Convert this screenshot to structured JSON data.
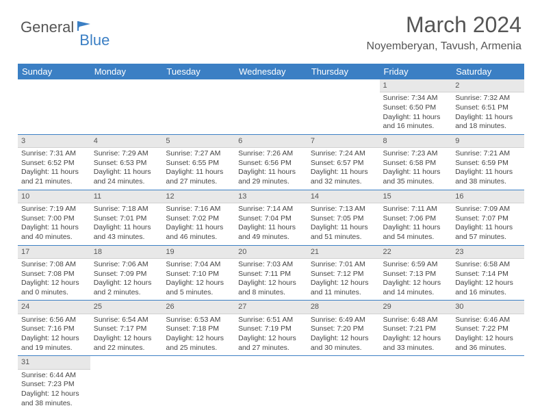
{
  "logo": {
    "text1": "General",
    "text2": "Blue"
  },
  "title": "March 2024",
  "location": "Noyemberyan, Tavush, Armenia",
  "colors": {
    "header_bg": "#3b7fc4",
    "header_text": "#ffffff",
    "daynum_bg": "#e8e8e8",
    "border": "#3b7fc4",
    "text": "#444444",
    "logo_gray": "#555555",
    "logo_blue": "#3b7fc4"
  },
  "columns": [
    "Sunday",
    "Monday",
    "Tuesday",
    "Wednesday",
    "Thursday",
    "Friday",
    "Saturday"
  ],
  "weeks": [
    [
      null,
      null,
      null,
      null,
      null,
      {
        "n": "1",
        "sr": "Sunrise: 7:34 AM",
        "ss": "Sunset: 6:50 PM",
        "d1": "Daylight: 11 hours",
        "d2": "and 16 minutes."
      },
      {
        "n": "2",
        "sr": "Sunrise: 7:32 AM",
        "ss": "Sunset: 6:51 PM",
        "d1": "Daylight: 11 hours",
        "d2": "and 18 minutes."
      }
    ],
    [
      {
        "n": "3",
        "sr": "Sunrise: 7:31 AM",
        "ss": "Sunset: 6:52 PM",
        "d1": "Daylight: 11 hours",
        "d2": "and 21 minutes."
      },
      {
        "n": "4",
        "sr": "Sunrise: 7:29 AM",
        "ss": "Sunset: 6:53 PM",
        "d1": "Daylight: 11 hours",
        "d2": "and 24 minutes."
      },
      {
        "n": "5",
        "sr": "Sunrise: 7:27 AM",
        "ss": "Sunset: 6:55 PM",
        "d1": "Daylight: 11 hours",
        "d2": "and 27 minutes."
      },
      {
        "n": "6",
        "sr": "Sunrise: 7:26 AM",
        "ss": "Sunset: 6:56 PM",
        "d1": "Daylight: 11 hours",
        "d2": "and 29 minutes."
      },
      {
        "n": "7",
        "sr": "Sunrise: 7:24 AM",
        "ss": "Sunset: 6:57 PM",
        "d1": "Daylight: 11 hours",
        "d2": "and 32 minutes."
      },
      {
        "n": "8",
        "sr": "Sunrise: 7:23 AM",
        "ss": "Sunset: 6:58 PM",
        "d1": "Daylight: 11 hours",
        "d2": "and 35 minutes."
      },
      {
        "n": "9",
        "sr": "Sunrise: 7:21 AM",
        "ss": "Sunset: 6:59 PM",
        "d1": "Daylight: 11 hours",
        "d2": "and 38 minutes."
      }
    ],
    [
      {
        "n": "10",
        "sr": "Sunrise: 7:19 AM",
        "ss": "Sunset: 7:00 PM",
        "d1": "Daylight: 11 hours",
        "d2": "and 40 minutes."
      },
      {
        "n": "11",
        "sr": "Sunrise: 7:18 AM",
        "ss": "Sunset: 7:01 PM",
        "d1": "Daylight: 11 hours",
        "d2": "and 43 minutes."
      },
      {
        "n": "12",
        "sr": "Sunrise: 7:16 AM",
        "ss": "Sunset: 7:02 PM",
        "d1": "Daylight: 11 hours",
        "d2": "and 46 minutes."
      },
      {
        "n": "13",
        "sr": "Sunrise: 7:14 AM",
        "ss": "Sunset: 7:04 PM",
        "d1": "Daylight: 11 hours",
        "d2": "and 49 minutes."
      },
      {
        "n": "14",
        "sr": "Sunrise: 7:13 AM",
        "ss": "Sunset: 7:05 PM",
        "d1": "Daylight: 11 hours",
        "d2": "and 51 minutes."
      },
      {
        "n": "15",
        "sr": "Sunrise: 7:11 AM",
        "ss": "Sunset: 7:06 PM",
        "d1": "Daylight: 11 hours",
        "d2": "and 54 minutes."
      },
      {
        "n": "16",
        "sr": "Sunrise: 7:09 AM",
        "ss": "Sunset: 7:07 PM",
        "d1": "Daylight: 11 hours",
        "d2": "and 57 minutes."
      }
    ],
    [
      {
        "n": "17",
        "sr": "Sunrise: 7:08 AM",
        "ss": "Sunset: 7:08 PM",
        "d1": "Daylight: 12 hours",
        "d2": "and 0 minutes."
      },
      {
        "n": "18",
        "sr": "Sunrise: 7:06 AM",
        "ss": "Sunset: 7:09 PM",
        "d1": "Daylight: 12 hours",
        "d2": "and 2 minutes."
      },
      {
        "n": "19",
        "sr": "Sunrise: 7:04 AM",
        "ss": "Sunset: 7:10 PM",
        "d1": "Daylight: 12 hours",
        "d2": "and 5 minutes."
      },
      {
        "n": "20",
        "sr": "Sunrise: 7:03 AM",
        "ss": "Sunset: 7:11 PM",
        "d1": "Daylight: 12 hours",
        "d2": "and 8 minutes."
      },
      {
        "n": "21",
        "sr": "Sunrise: 7:01 AM",
        "ss": "Sunset: 7:12 PM",
        "d1": "Daylight: 12 hours",
        "d2": "and 11 minutes."
      },
      {
        "n": "22",
        "sr": "Sunrise: 6:59 AM",
        "ss": "Sunset: 7:13 PM",
        "d1": "Daylight: 12 hours",
        "d2": "and 14 minutes."
      },
      {
        "n": "23",
        "sr": "Sunrise: 6:58 AM",
        "ss": "Sunset: 7:14 PM",
        "d1": "Daylight: 12 hours",
        "d2": "and 16 minutes."
      }
    ],
    [
      {
        "n": "24",
        "sr": "Sunrise: 6:56 AM",
        "ss": "Sunset: 7:16 PM",
        "d1": "Daylight: 12 hours",
        "d2": "and 19 minutes."
      },
      {
        "n": "25",
        "sr": "Sunrise: 6:54 AM",
        "ss": "Sunset: 7:17 PM",
        "d1": "Daylight: 12 hours",
        "d2": "and 22 minutes."
      },
      {
        "n": "26",
        "sr": "Sunrise: 6:53 AM",
        "ss": "Sunset: 7:18 PM",
        "d1": "Daylight: 12 hours",
        "d2": "and 25 minutes."
      },
      {
        "n": "27",
        "sr": "Sunrise: 6:51 AM",
        "ss": "Sunset: 7:19 PM",
        "d1": "Daylight: 12 hours",
        "d2": "and 27 minutes."
      },
      {
        "n": "28",
        "sr": "Sunrise: 6:49 AM",
        "ss": "Sunset: 7:20 PM",
        "d1": "Daylight: 12 hours",
        "d2": "and 30 minutes."
      },
      {
        "n": "29",
        "sr": "Sunrise: 6:48 AM",
        "ss": "Sunset: 7:21 PM",
        "d1": "Daylight: 12 hours",
        "d2": "and 33 minutes."
      },
      {
        "n": "30",
        "sr": "Sunrise: 6:46 AM",
        "ss": "Sunset: 7:22 PM",
        "d1": "Daylight: 12 hours",
        "d2": "and 36 minutes."
      }
    ],
    [
      {
        "n": "31",
        "sr": "Sunrise: 6:44 AM",
        "ss": "Sunset: 7:23 PM",
        "d1": "Daylight: 12 hours",
        "d2": "and 38 minutes."
      },
      null,
      null,
      null,
      null,
      null,
      null
    ]
  ]
}
